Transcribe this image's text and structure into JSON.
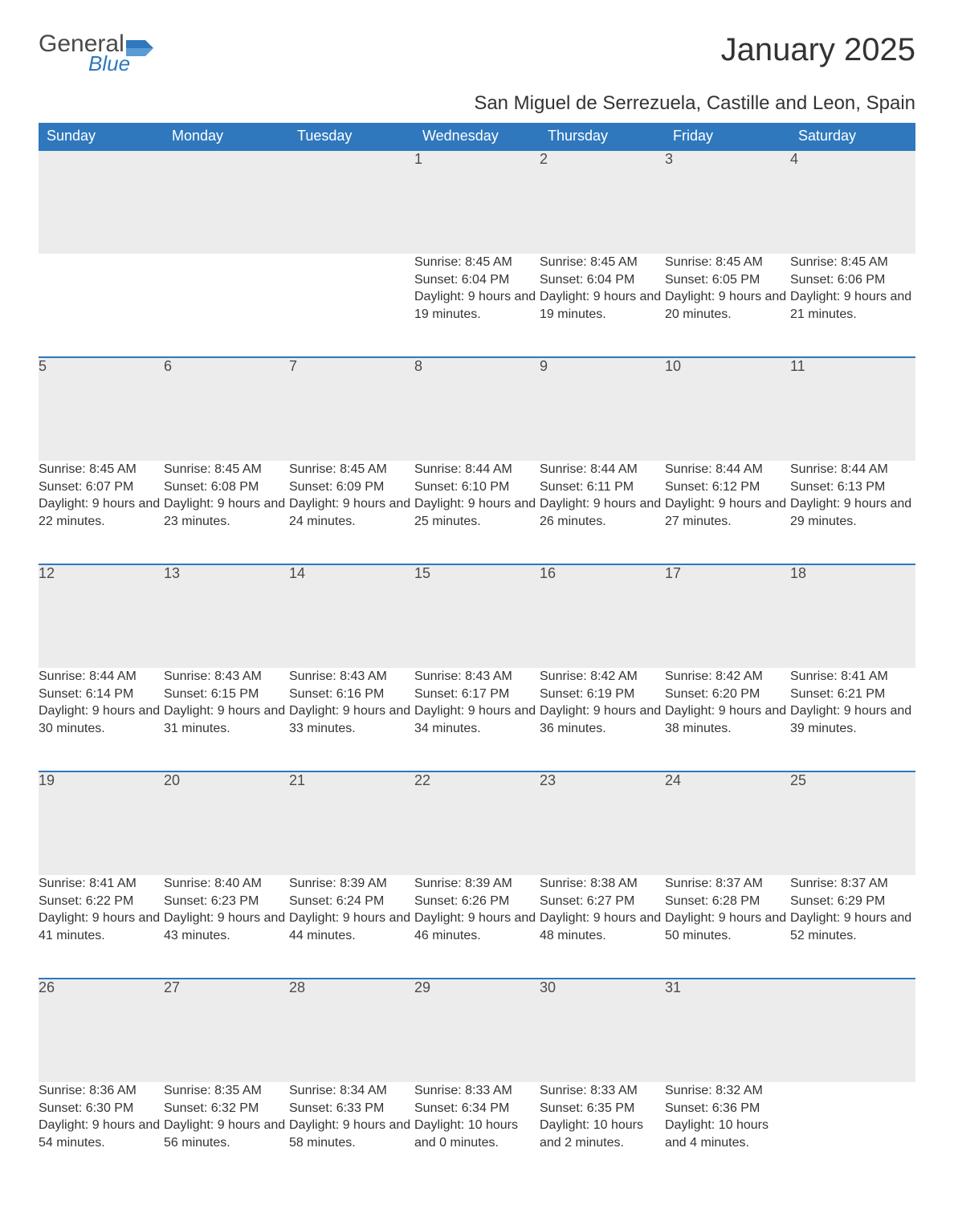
{
  "logo": {
    "word1": "General",
    "word2": "Blue"
  },
  "title": "January 2025",
  "subtitle": "San Miguel de Serrezuela, Castille and Leon, Spain",
  "colors": {
    "header_bg": "#2f78bd",
    "header_text": "#ffffff",
    "daynum_bg": "#ececec",
    "row_border": "#2f78bd",
    "body_text": "#333333",
    "logo_gray": "#4a4a4a",
    "logo_blue": "#2f78bd",
    "page_bg": "#ffffff"
  },
  "typography": {
    "title_fontsize": 40,
    "subtitle_fontsize": 24,
    "weekday_fontsize": 18,
    "daynum_fontsize": 18,
    "detail_fontsize": 16
  },
  "weekdays": [
    "Sunday",
    "Monday",
    "Tuesday",
    "Wednesday",
    "Thursday",
    "Friday",
    "Saturday"
  ],
  "weeks": [
    [
      null,
      null,
      null,
      {
        "day": "1",
        "sunrise": "8:45 AM",
        "sunset": "6:04 PM",
        "daylight": "9 hours and 19 minutes."
      },
      {
        "day": "2",
        "sunrise": "8:45 AM",
        "sunset": "6:04 PM",
        "daylight": "9 hours and 19 minutes."
      },
      {
        "day": "3",
        "sunrise": "8:45 AM",
        "sunset": "6:05 PM",
        "daylight": "9 hours and 20 minutes."
      },
      {
        "day": "4",
        "sunrise": "8:45 AM",
        "sunset": "6:06 PM",
        "daylight": "9 hours and 21 minutes."
      }
    ],
    [
      {
        "day": "5",
        "sunrise": "8:45 AM",
        "sunset": "6:07 PM",
        "daylight": "9 hours and 22 minutes."
      },
      {
        "day": "6",
        "sunrise": "8:45 AM",
        "sunset": "6:08 PM",
        "daylight": "9 hours and 23 minutes."
      },
      {
        "day": "7",
        "sunrise": "8:45 AM",
        "sunset": "6:09 PM",
        "daylight": "9 hours and 24 minutes."
      },
      {
        "day": "8",
        "sunrise": "8:44 AM",
        "sunset": "6:10 PM",
        "daylight": "9 hours and 25 minutes."
      },
      {
        "day": "9",
        "sunrise": "8:44 AM",
        "sunset": "6:11 PM",
        "daylight": "9 hours and 26 minutes."
      },
      {
        "day": "10",
        "sunrise": "8:44 AM",
        "sunset": "6:12 PM",
        "daylight": "9 hours and 27 minutes."
      },
      {
        "day": "11",
        "sunrise": "8:44 AM",
        "sunset": "6:13 PM",
        "daylight": "9 hours and 29 minutes."
      }
    ],
    [
      {
        "day": "12",
        "sunrise": "8:44 AM",
        "sunset": "6:14 PM",
        "daylight": "9 hours and 30 minutes."
      },
      {
        "day": "13",
        "sunrise": "8:43 AM",
        "sunset": "6:15 PM",
        "daylight": "9 hours and 31 minutes."
      },
      {
        "day": "14",
        "sunrise": "8:43 AM",
        "sunset": "6:16 PM",
        "daylight": "9 hours and 33 minutes."
      },
      {
        "day": "15",
        "sunrise": "8:43 AM",
        "sunset": "6:17 PM",
        "daylight": "9 hours and 34 minutes."
      },
      {
        "day": "16",
        "sunrise": "8:42 AM",
        "sunset": "6:19 PM",
        "daylight": "9 hours and 36 minutes."
      },
      {
        "day": "17",
        "sunrise": "8:42 AM",
        "sunset": "6:20 PM",
        "daylight": "9 hours and 38 minutes."
      },
      {
        "day": "18",
        "sunrise": "8:41 AM",
        "sunset": "6:21 PM",
        "daylight": "9 hours and 39 minutes."
      }
    ],
    [
      {
        "day": "19",
        "sunrise": "8:41 AM",
        "sunset": "6:22 PM",
        "daylight": "9 hours and 41 minutes."
      },
      {
        "day": "20",
        "sunrise": "8:40 AM",
        "sunset": "6:23 PM",
        "daylight": "9 hours and 43 minutes."
      },
      {
        "day": "21",
        "sunrise": "8:39 AM",
        "sunset": "6:24 PM",
        "daylight": "9 hours and 44 minutes."
      },
      {
        "day": "22",
        "sunrise": "8:39 AM",
        "sunset": "6:26 PM",
        "daylight": "9 hours and 46 minutes."
      },
      {
        "day": "23",
        "sunrise": "8:38 AM",
        "sunset": "6:27 PM",
        "daylight": "9 hours and 48 minutes."
      },
      {
        "day": "24",
        "sunrise": "8:37 AM",
        "sunset": "6:28 PM",
        "daylight": "9 hours and 50 minutes."
      },
      {
        "day": "25",
        "sunrise": "8:37 AM",
        "sunset": "6:29 PM",
        "daylight": "9 hours and 52 minutes."
      }
    ],
    [
      {
        "day": "26",
        "sunrise": "8:36 AM",
        "sunset": "6:30 PM",
        "daylight": "9 hours and 54 minutes."
      },
      {
        "day": "27",
        "sunrise": "8:35 AM",
        "sunset": "6:32 PM",
        "daylight": "9 hours and 56 minutes."
      },
      {
        "day": "28",
        "sunrise": "8:34 AM",
        "sunset": "6:33 PM",
        "daylight": "9 hours and 58 minutes."
      },
      {
        "day": "29",
        "sunrise": "8:33 AM",
        "sunset": "6:34 PM",
        "daylight": "10 hours and 0 minutes."
      },
      {
        "day": "30",
        "sunrise": "8:33 AM",
        "sunset": "6:35 PM",
        "daylight": "10 hours and 2 minutes."
      },
      {
        "day": "31",
        "sunrise": "8:32 AM",
        "sunset": "6:36 PM",
        "daylight": "10 hours and 4 minutes."
      },
      null
    ]
  ],
  "labels": {
    "sunrise": "Sunrise:",
    "sunset": "Sunset:",
    "daylight": "Daylight:"
  }
}
